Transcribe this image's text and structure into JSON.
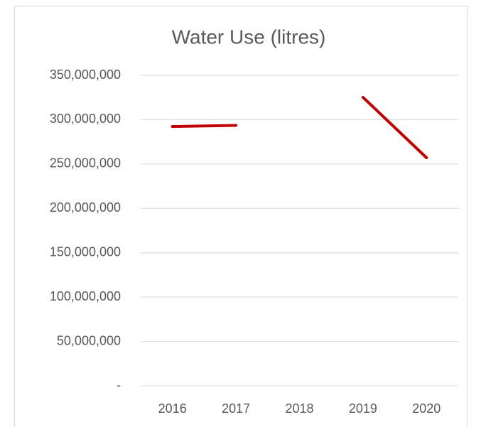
{
  "chart_data": {
    "type": "line",
    "title": "Water Use (litres)",
    "categories": [
      "2016",
      "2017",
      "2018",
      "2019",
      "2020"
    ],
    "series": [
      {
        "name": "Water Use",
        "color": "#c00000",
        "values": [
          292300000,
          293500000,
          null,
          325200000,
          257100000
        ]
      }
    ],
    "ylim": [
      0,
      350000000
    ],
    "yticks": [
      {
        "value": 0,
        "label": "-"
      },
      {
        "value": 50000000,
        "label": "50,000,000"
      },
      {
        "value": 100000000,
        "label": "100,000,000"
      },
      {
        "value": 150000000,
        "label": "150,000,000"
      },
      {
        "value": 200000000,
        "label": "200,000,000"
      },
      {
        "value": 250000000,
        "label": "250,000,000"
      },
      {
        "value": 300000000,
        "label": "300,000,000"
      },
      {
        "value": 350000000,
        "label": "350,000,000"
      }
    ],
    "grid": true
  }
}
